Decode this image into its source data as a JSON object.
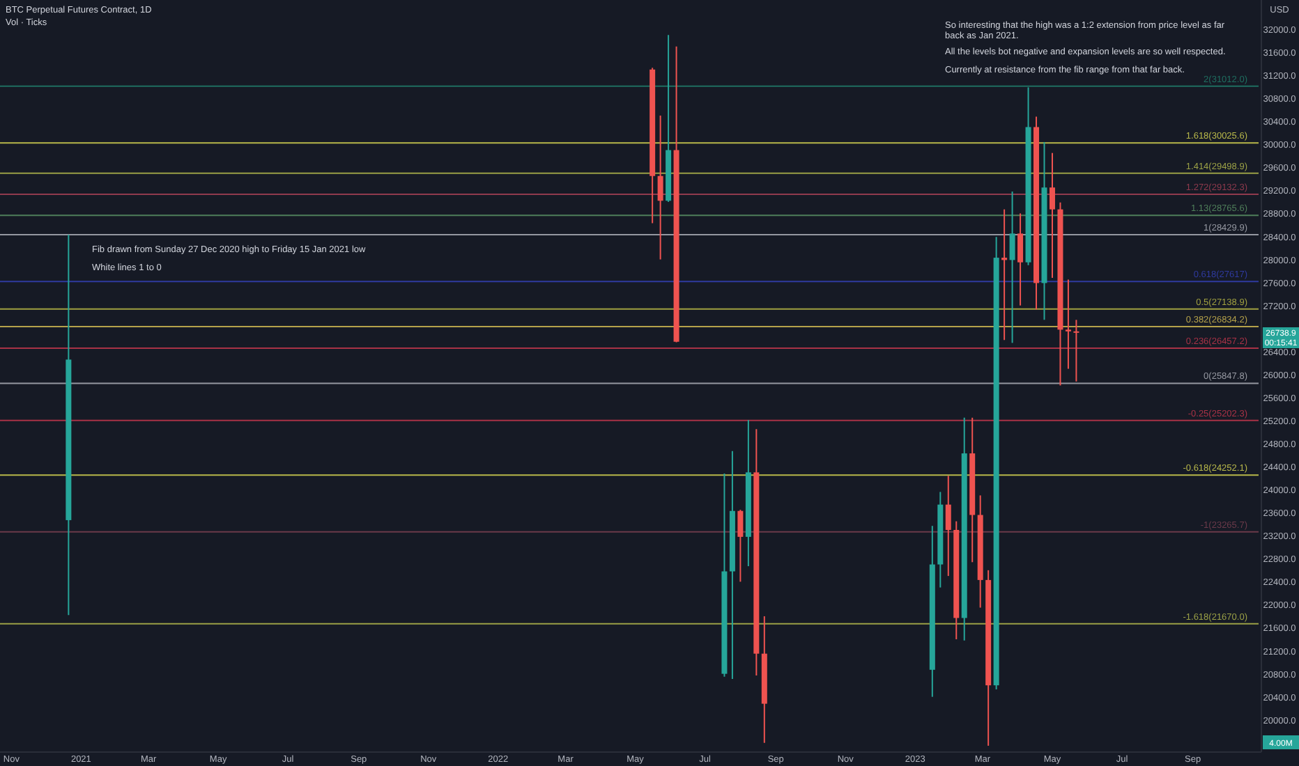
{
  "chart_data": {
    "type": "candlestick",
    "title": "BTC Perpetual Futures Contract, 1D",
    "ylabel": "USD",
    "x": [
      "2020-12-21",
      "2022-05-16",
      "2022-05-23",
      "2022-05-30",
      "2022-06-06",
      "2022-07-18",
      "2022-07-25",
      "2022-08-01",
      "2022-08-08",
      "2022-08-15",
      "2022-08-22",
      "2023-01-16",
      "2023-01-23",
      "2023-01-30",
      "2023-02-06",
      "2023-02-13",
      "2023-02-20",
      "2023-02-27",
      "2023-03-06",
      "2023-03-13",
      "2023-03-20",
      "2023-03-27",
      "2023-04-03",
      "2023-04-10",
      "2023-04-17",
      "2023-04-24",
      "2023-05-01",
      "2023-05-08",
      "2023-05-15",
      "2023-05-22"
    ],
    "ohlc": [
      [
        23470,
        28430,
        21820,
        26260
      ],
      [
        31300,
        31330,
        28630,
        29450
      ],
      [
        29450,
        30500,
        28000,
        29020
      ],
      [
        29020,
        31900,
        29000,
        29900
      ],
      [
        29900,
        31700,
        26560,
        26570
      ],
      [
        20800,
        24280,
        20750,
        22580
      ],
      [
        22580,
        24670,
        20710,
        23630
      ],
      [
        23630,
        23650,
        22400,
        23180
      ],
      [
        23180,
        25210,
        22670,
        24300
      ],
      [
        24300,
        25050,
        20770,
        21150
      ],
      [
        21150,
        21800,
        19600,
        20280
      ],
      [
        20870,
        23370,
        20400,
        22700
      ],
      [
        22700,
        23960,
        22300,
        23740
      ],
      [
        23740,
        24240,
        22500,
        23300
      ],
      [
        23300,
        23450,
        21400,
        21770
      ],
      [
        21770,
        25250,
        21380,
        24630
      ],
      [
        24630,
        25250,
        22740,
        23560
      ],
      [
        23560,
        23900,
        21950,
        22430
      ],
      [
        22430,
        22600,
        19550,
        20600
      ],
      [
        20600,
        28390,
        20530,
        28030
      ],
      [
        28030,
        28870,
        26600,
        27990
      ],
      [
        27990,
        29180,
        26550,
        28450
      ],
      [
        28450,
        28800,
        27200,
        27950
      ],
      [
        27950,
        30990,
        27900,
        30300
      ],
      [
        30300,
        30480,
        27130,
        27590
      ],
      [
        27590,
        30040,
        26950,
        29250
      ],
      [
        29250,
        29850,
        27680,
        28870
      ],
      [
        28870,
        28990,
        25810,
        26780
      ],
      [
        26780,
        27650,
        26100,
        26750
      ],
      [
        26750,
        26950,
        25880,
        26738.9
      ]
    ],
    "xlim": [
      "2020-10-22",
      "2023-10-31"
    ],
    "xticks": [
      {
        "value": "2020-11-01",
        "label": "Nov"
      },
      {
        "value": "2021-01-01",
        "label": "2021"
      },
      {
        "value": "2021-03-01",
        "label": "Mar"
      },
      {
        "value": "2021-05-01",
        "label": "May"
      },
      {
        "value": "2021-07-01",
        "label": "Jul"
      },
      {
        "value": "2021-09-01",
        "label": "Sep"
      },
      {
        "value": "2021-11-01",
        "label": "Nov"
      },
      {
        "value": "2022-01-01",
        "label": "2022"
      },
      {
        "value": "2022-03-01",
        "label": "Mar"
      },
      {
        "value": "2022-05-01",
        "label": "May"
      },
      {
        "value": "2022-07-01",
        "label": "Jul"
      },
      {
        "value": "2022-09-01",
        "label": "Sep"
      },
      {
        "value": "2022-11-01",
        "label": "Nov"
      },
      {
        "value": "2023-01-01",
        "label": "2023"
      },
      {
        "value": "2023-03-01",
        "label": "Mar"
      },
      {
        "value": "2023-05-01",
        "label": "May"
      },
      {
        "value": "2023-07-01",
        "label": "Jul"
      },
      {
        "value": "2023-09-01",
        "label": "Sep"
      }
    ],
    "ylim": [
      19440,
      32508
    ],
    "yticks": [
      {
        "value": 20000,
        "label": "20000.0"
      },
      {
        "value": 20400,
        "label": "20400.0"
      },
      {
        "value": 20800,
        "label": "20800.0"
      },
      {
        "value": 21200,
        "label": "21200.0"
      },
      {
        "value": 21600,
        "label": "21600.0"
      },
      {
        "value": 22000,
        "label": "22000.0"
      },
      {
        "value": 22400,
        "label": "22400.0"
      },
      {
        "value": 22800,
        "label": "22800.0"
      },
      {
        "value": 23200,
        "label": "23200.0"
      },
      {
        "value": 23600,
        "label": "23600.0"
      },
      {
        "value": 24000,
        "label": "24000.0"
      },
      {
        "value": 24400,
        "label": "24400.0"
      },
      {
        "value": 24800,
        "label": "24800.0"
      },
      {
        "value": 25200,
        "label": "25200.0"
      },
      {
        "value": 25600,
        "label": "25600.0"
      },
      {
        "value": 26000,
        "label": "26000.0"
      },
      {
        "value": 26400,
        "label": "26400.0"
      },
      {
        "value": 26800,
        "label": null
      },
      {
        "value": 27200,
        "label": "27200.0"
      },
      {
        "value": 27600,
        "label": "27600.0"
      },
      {
        "value": 28000,
        "label": "28000.0"
      },
      {
        "value": 28400,
        "label": "28400.0"
      },
      {
        "value": 28800,
        "label": "28800.0"
      },
      {
        "value": 29200,
        "label": "29200.0"
      },
      {
        "value": 29600,
        "label": "29600.0"
      },
      {
        "value": 30000,
        "label": "30000.0"
      },
      {
        "value": 30400,
        "label": "30400.0"
      },
      {
        "value": 30800,
        "label": "30800.0"
      },
      {
        "value": 31200,
        "label": "31200.0"
      },
      {
        "value": 31600,
        "label": "31600.0"
      },
      {
        "value": 32000,
        "label": "32000.0"
      }
    ],
    "grid": false,
    "ref_lines": [
      {
        "axis": "y",
        "value": 31012.0,
        "label": "2(31012.0)",
        "color": "#1f6e60"
      },
      {
        "axis": "y",
        "value": 30025.6,
        "label": "1.618(30025.6)",
        "color": "#b8b84a"
      },
      {
        "axis": "y",
        "value": 29498.9,
        "label": "1.414(29498.9)",
        "color": "#9aa046"
      },
      {
        "axis": "y",
        "value": 29132.3,
        "label": "1.272(29132.3)",
        "color": "#8f3a4d"
      },
      {
        "axis": "y",
        "value": 28765.6,
        "label": "1.13(28765.6)",
        "color": "#4f7f5a"
      },
      {
        "axis": "y",
        "value": 28429.9,
        "label": "1(28429.9)",
        "color": "#9598a1"
      },
      {
        "axis": "y",
        "value": 27617,
        "label": "0.618(27617)",
        "color": "#2f3a9f"
      },
      {
        "axis": "y",
        "value": 27138.9,
        "label": "0.5(27138.9)",
        "color": "#a0a040"
      },
      {
        "axis": "y",
        "value": 26834.2,
        "label": "0.382(26834.2)",
        "color": "#b5a24a"
      },
      {
        "axis": "y",
        "value": 26457.2,
        "label": "0.236(26457.2)",
        "color": "#a83246"
      },
      {
        "axis": "y",
        "value": 25847.8,
        "label": "0(25847.8)",
        "color": "#9598a1"
      },
      {
        "axis": "y",
        "value": 25202.3,
        "label": "-0.25(25202.3)",
        "color": "#a83246"
      },
      {
        "axis": "y",
        "value": 24252.1,
        "label": "-0.618(24252.1)",
        "color": "#b8b84a"
      },
      {
        "axis": "y",
        "value": 23265.7,
        "label": "-1(23265.7)",
        "color": "#6b3a4a"
      },
      {
        "axis": "y",
        "value": 21670.0,
        "label": "-1.618(21670.0)",
        "color": "#9aa046"
      }
    ],
    "annotations": [
      "Vol · Ticks",
      "So interesting that the high was a 1:2 extension from price level as far back as Jan 2021.",
      "All the levels bot negative and expansion levels are so well respected.",
      "Currently at resistance from the fib range from that far back.",
      "Fib drawn from Sunday 27 Dec 2020 high to Friday 15 Jan 2021 low",
      "White lines 1 to 0",
      "26738.9",
      "00:15:41",
      "4.00M"
    ]
  }
}
